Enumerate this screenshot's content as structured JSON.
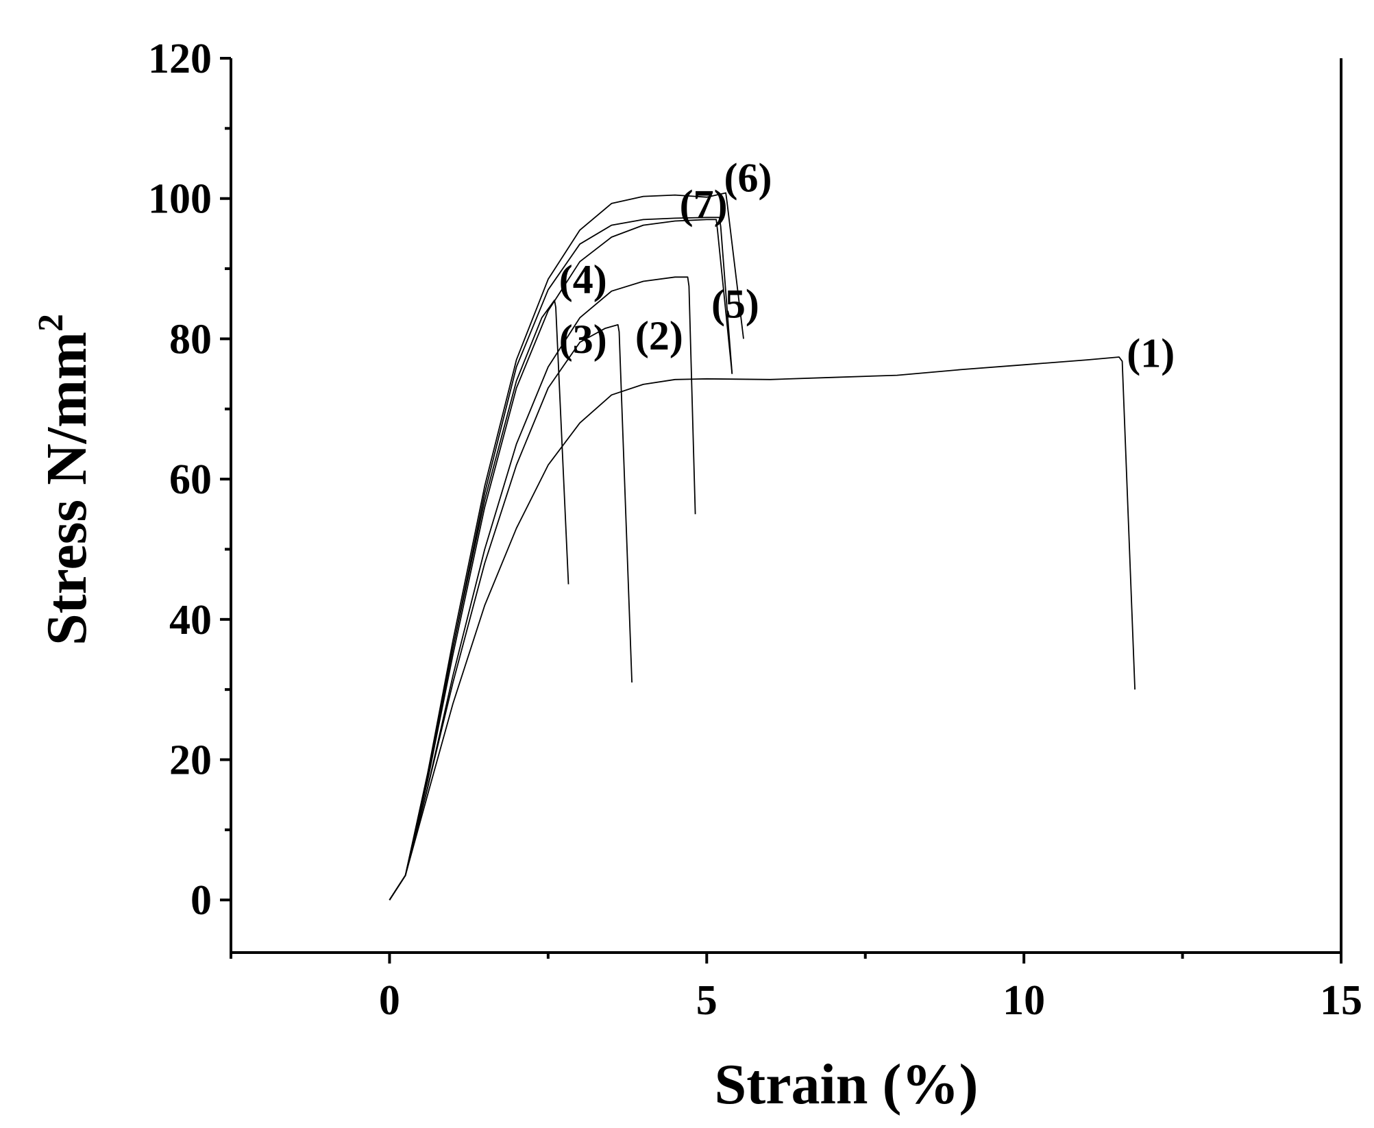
{
  "chart_data": {
    "type": "line",
    "title": "",
    "xlabel": "Strain (%)",
    "ylabel": "Stress N/mm",
    "ylabel_superscript": "2",
    "xlim": [
      -2.5,
      15
    ],
    "ylim": [
      -7.5,
      120
    ],
    "x_ticks": [
      0,
      5,
      10,
      15
    ],
    "x_tick_labels": [
      "0",
      "5",
      "10",
      "15"
    ],
    "x_minor_ticks": [
      -2.5,
      2.5,
      7.5,
      12.5
    ],
    "y_ticks": [
      0,
      20,
      40,
      60,
      80,
      100,
      120
    ],
    "y_tick_labels": [
      "0",
      "20",
      "40",
      "60",
      "80",
      "100",
      "120"
    ],
    "y_minor_ticks": [
      10,
      30,
      50,
      70,
      90,
      110
    ],
    "grid": false,
    "legend": "none",
    "series": [
      {
        "label": "(1)",
        "label_pos": [
          12.0,
          76
        ],
        "points": [
          [
            0,
            0
          ],
          [
            0.25,
            3.5
          ],
          [
            0.6,
            15
          ],
          [
            1.0,
            28
          ],
          [
            1.5,
            42
          ],
          [
            2.0,
            53
          ],
          [
            2.5,
            62
          ],
          [
            3.0,
            68
          ],
          [
            3.5,
            72
          ],
          [
            4.0,
            73.5
          ],
          [
            4.5,
            74.2
          ],
          [
            5.0,
            74.3
          ],
          [
            6.0,
            74.2
          ],
          [
            7.0,
            74.5
          ],
          [
            8.0,
            74.8
          ],
          [
            9.0,
            75.6
          ],
          [
            10.0,
            76.3
          ],
          [
            11.0,
            77.0
          ],
          [
            11.5,
            77.4
          ],
          [
            11.55,
            76.8
          ],
          [
            11.75,
            30
          ]
        ]
      },
      {
        "label": "(2)",
        "label_pos": [
          4.25,
          78.5
        ],
        "points": [
          [
            0,
            0
          ],
          [
            0.25,
            3.5
          ],
          [
            0.6,
            16
          ],
          [
            1.0,
            32
          ],
          [
            1.5,
            50
          ],
          [
            2.0,
            65
          ],
          [
            2.5,
            76
          ],
          [
            3.0,
            83
          ],
          [
            3.5,
            86.8
          ],
          [
            4.0,
            88.2
          ],
          [
            4.5,
            88.8
          ],
          [
            4.7,
            88.8
          ],
          [
            4.72,
            87.5
          ],
          [
            4.82,
            55
          ]
        ]
      },
      {
        "label": "(3)",
        "label_pos": [
          3.05,
          78
        ],
        "points": [
          [
            0,
            0
          ],
          [
            0.25,
            3.5
          ],
          [
            0.6,
            16
          ],
          [
            1.0,
            31
          ],
          [
            1.5,
            48
          ],
          [
            2.0,
            62
          ],
          [
            2.5,
            73
          ],
          [
            3.0,
            79.5
          ],
          [
            3.4,
            81.5
          ],
          [
            3.6,
            82
          ],
          [
            3.62,
            81
          ],
          [
            3.82,
            31
          ]
        ]
      },
      {
        "label": "(4)",
        "label_pos": [
          3.05,
          86.5
        ],
        "points": [
          [
            0,
            0
          ],
          [
            0.25,
            3.5
          ],
          [
            0.6,
            18
          ],
          [
            1.0,
            36
          ],
          [
            1.5,
            57
          ],
          [
            2.0,
            74
          ],
          [
            2.4,
            83
          ],
          [
            2.6,
            85.5
          ],
          [
            2.62,
            84.5
          ],
          [
            2.82,
            45
          ]
        ]
      },
      {
        "label": "(5)",
        "label_pos": [
          5.45,
          83
        ],
        "points": [
          [
            0,
            0
          ],
          [
            0.25,
            3.5
          ],
          [
            0.6,
            17
          ],
          [
            1.0,
            35
          ],
          [
            1.5,
            56
          ],
          [
            2.0,
            73
          ],
          [
            2.5,
            84
          ],
          [
            3.0,
            91
          ],
          [
            3.5,
            94.5
          ],
          [
            4.0,
            96.2
          ],
          [
            4.5,
            96.8
          ],
          [
            5.0,
            97.0
          ],
          [
            5.15,
            97.0
          ],
          [
            5.17,
            95.5
          ],
          [
            5.4,
            75
          ]
        ]
      },
      {
        "label": "(6)",
        "label_pos": [
          5.65,
          101
        ],
        "points": [
          [
            0,
            0
          ],
          [
            0.25,
            3.5
          ],
          [
            0.6,
            18
          ],
          [
            1.0,
            37
          ],
          [
            1.5,
            59
          ],
          [
            2.0,
            77
          ],
          [
            2.5,
            88.5
          ],
          [
            3.0,
            95.5
          ],
          [
            3.5,
            99.3
          ],
          [
            4.0,
            100.3
          ],
          [
            4.5,
            100.5
          ],
          [
            5.0,
            100.2
          ],
          [
            5.3,
            100.8
          ],
          [
            5.32,
            99.5
          ],
          [
            5.58,
            80
          ]
        ]
      },
      {
        "label": "(7)",
        "label_pos": [
          4.95,
          97.2
        ],
        "points": [
          [
            0,
            0
          ],
          [
            0.25,
            3.5
          ],
          [
            0.6,
            17.5
          ],
          [
            1.0,
            36
          ],
          [
            1.5,
            58
          ],
          [
            2.0,
            76
          ],
          [
            2.5,
            87
          ],
          [
            3.0,
            93.5
          ],
          [
            3.5,
            96.2
          ],
          [
            4.0,
            97.0
          ],
          [
            4.5,
            97.2
          ],
          [
            5.0,
            97.3
          ],
          [
            5.2,
            97.3
          ],
          [
            5.22,
            96
          ],
          [
            5.4,
            75
          ]
        ]
      }
    ]
  }
}
